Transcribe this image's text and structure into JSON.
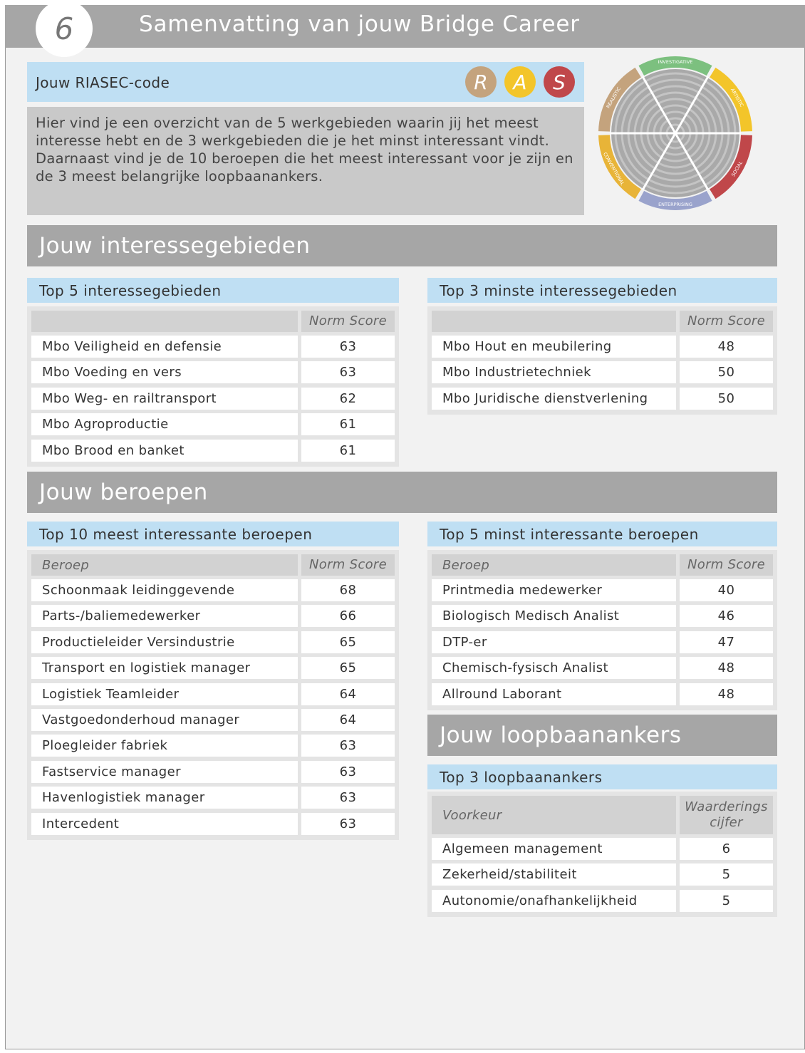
{
  "header": {
    "number": "6",
    "title": "Samenvatting van jouw Bridge Career"
  },
  "riasec": {
    "label": "Jouw RIASEC-code",
    "letters": [
      "R",
      "A",
      "S"
    ],
    "description": "Hier vind je een overzicht van de 5 werkgebieden waarin jij het meest interesse hebt en de 3 werkgebieden die je het minst interessant vindt. Daarnaast vind je de 10 beroepen die het meest interessant voor je zijn en de 3 meest belangrijke loopbaanankers."
  },
  "wheel": {
    "labels": [
      "INVESTIGATIVE",
      "ARTISTIC",
      "SOCIAL",
      "ENTERPRISING",
      "CONVENTIONAL",
      "REALISTIC"
    ]
  },
  "sections": [
    {
      "title": "Jouw interessegebieden",
      "tables": [
        {
          "title": "Top 5 interessegebieden",
          "header": {
            "score": "Norm Score"
          },
          "rows": [
            [
              "Mbo Veiligheid en defensie",
              63
            ],
            [
              "Mbo Voeding en vers",
              63
            ],
            [
              "Mbo Weg- en railtransport",
              62
            ],
            [
              "Mbo Agroproductie",
              61
            ],
            [
              "Mbo Brood en banket",
              61
            ]
          ]
        },
        {
          "title": "Top 3 minste interessegebieden",
          "header": {
            "score": "Norm Score"
          },
          "rows": [
            [
              "Mbo Hout en meubilering",
              48
            ],
            [
              "Mbo Industrietechniek",
              50
            ],
            [
              "Mbo Juridische dienstverlening",
              50
            ]
          ]
        }
      ]
    },
    {
      "title": "Jouw beroepen",
      "tables": [
        {
          "title": "Top 10 meest interessante beroepen",
          "header": {
            "name": "Beroep",
            "score": "Norm Score"
          },
          "rows": [
            [
              "Schoonmaak leidinggevende",
              68
            ],
            [
              "Parts-/baliemedewerker",
              66
            ],
            [
              "Productieleider Versindustrie",
              65
            ],
            [
              "Transport en logistiek manager",
              65
            ],
            [
              "Logistiek Teamleider",
              64
            ],
            [
              "Vastgoedonderhoud manager",
              64
            ],
            [
              "Ploegleider fabriek",
              63
            ],
            [
              "Fastservice manager",
              63
            ],
            [
              "Havenlogistiek manager",
              63
            ],
            [
              "Intercedent",
              63
            ]
          ]
        },
        {
          "title": "Top 5 minst interessante beroepen",
          "header": {
            "name": "Beroep",
            "score": "Norm Score"
          },
          "rows": [
            [
              "Printmedia medewerker",
              40
            ],
            [
              "Biologisch Medisch Analist",
              46
            ],
            [
              "DTP-er",
              47
            ],
            [
              "Chemisch-fysisch Analist",
              48
            ],
            [
              "Allround Laborant",
              48
            ]
          ]
        }
      ]
    },
    {
      "title": "Jouw loopbaanankers",
      "tables": [
        {
          "title": "Top 3 loopbaanankers",
          "header": {
            "name": "Voorkeur",
            "score": "Waarderings cijfer"
          },
          "rows": [
            [
              "Algemeen management",
              6
            ],
            [
              "Zekerheid/stabiliteit",
              5
            ],
            [
              "Autonomie/onafhankelijkheid",
              5
            ]
          ]
        }
      ]
    }
  ]
}
